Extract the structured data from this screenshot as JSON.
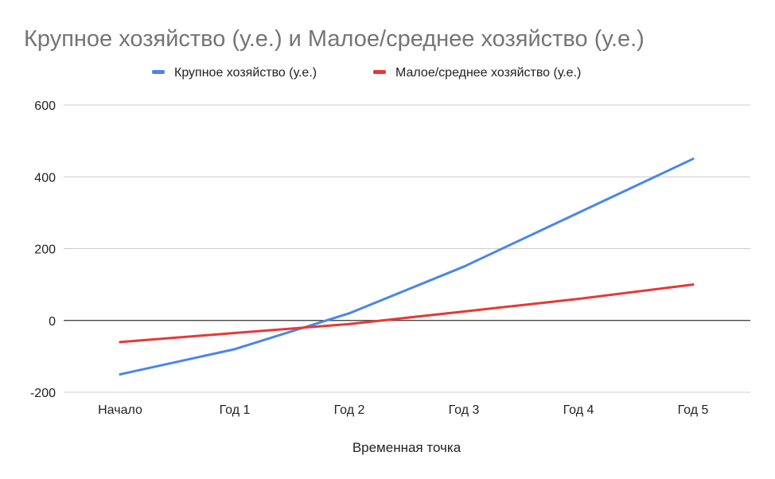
{
  "chart_data": {
    "type": "line",
    "title": "Крупное хозяйство (у.е.) и Малое/среднее хозяйство (у.е.)",
    "xlabel": "Временная точка",
    "ylabel": "",
    "categories": [
      "Начало",
      "Год 1",
      "Год 2",
      "Год 3",
      "Год 4",
      "Год 5"
    ],
    "ylim": [
      -200,
      600
    ],
    "yticks": [
      "600",
      "400",
      "200",
      "0",
      "-200"
    ],
    "ytick_values": [
      600,
      400,
      200,
      0,
      -200
    ],
    "grid": true,
    "legend_position": "top",
    "series": [
      {
        "name": "Крупное хозяйство (у.е.)",
        "color": "#4a86e8",
        "values": [
          -150,
          -80,
          20,
          150,
          300,
          450
        ]
      },
      {
        "name": "Малое/среднее хозяйство (у.е.)",
        "color": "#e53935",
        "values": [
          -60,
          -35,
          -10,
          25,
          60,
          100
        ]
      }
    ]
  }
}
